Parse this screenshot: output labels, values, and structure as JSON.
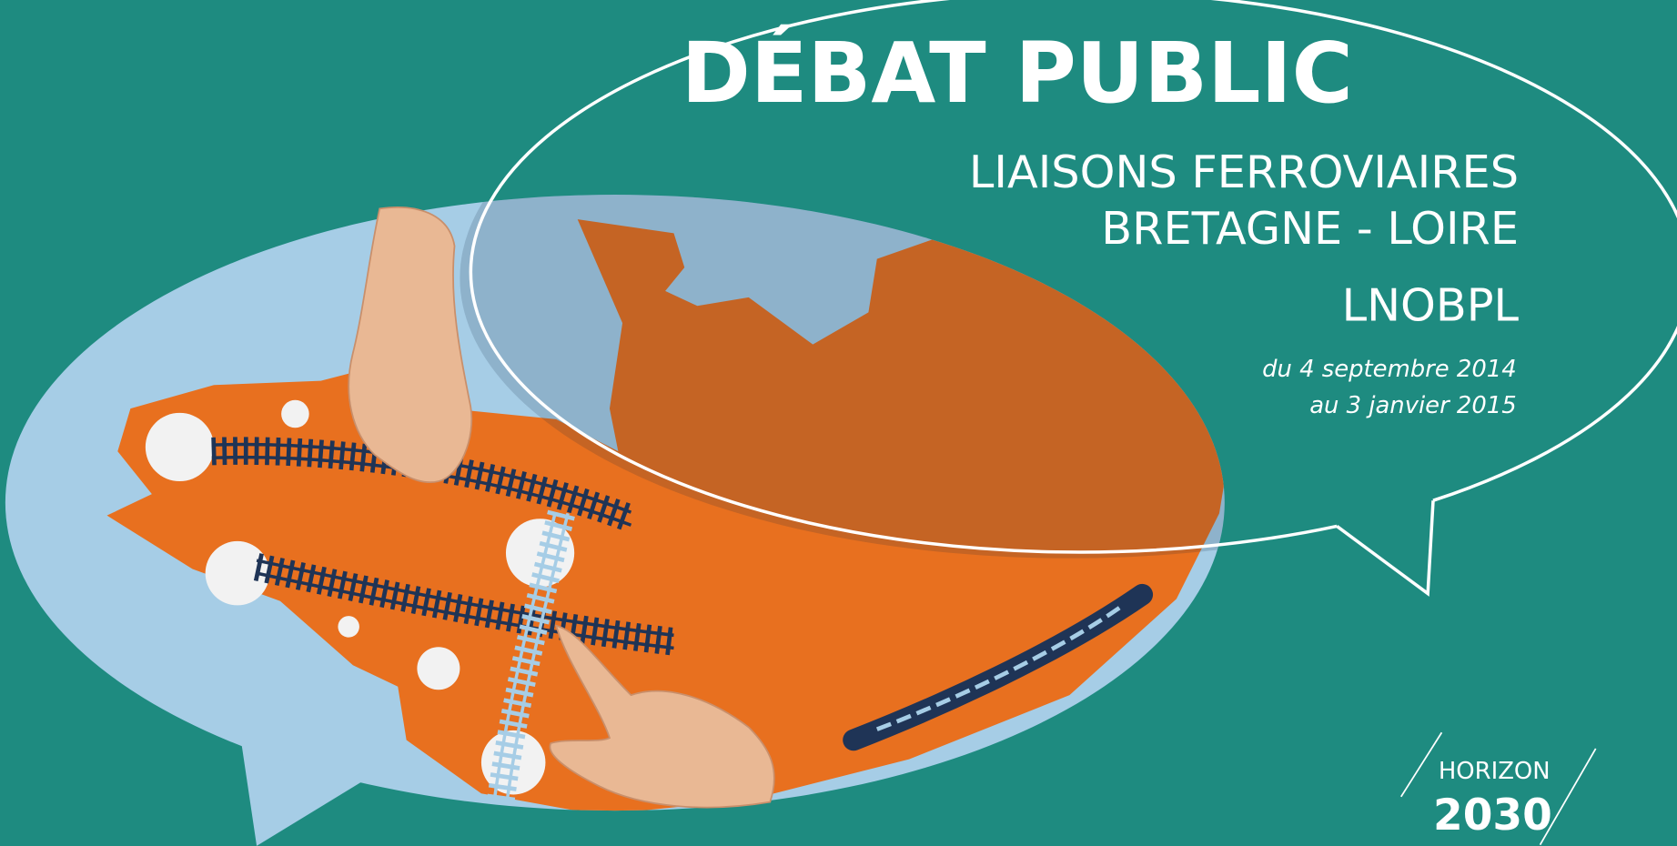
{
  "title": "DÉBAT PUBLIC",
  "subtitle": [
    "LIAISONS FERROVIAIRES",
    "BRETAGNE - LOIRE"
  ],
  "acronym": "LNOBPL",
  "dates": [
    "du 4 septembre 2014",
    "au 3 janvier 2015"
  ],
  "logo": {
    "line1": "HORIZON",
    "line2": "2030"
  }
}
